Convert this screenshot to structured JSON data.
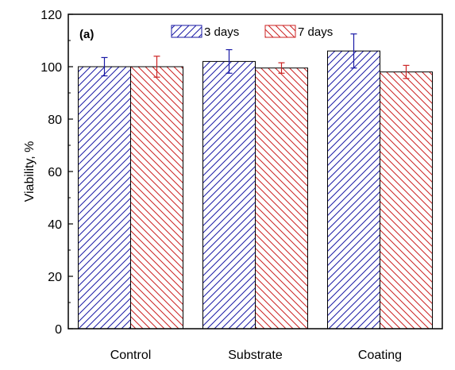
{
  "chart_data": {
    "type": "bar",
    "panel_label": "(a)",
    "title": "",
    "xlabel": "",
    "ylabel": "Viability, %",
    "ylim": [
      0,
      120
    ],
    "yticks": [
      0,
      20,
      40,
      60,
      80,
      100,
      120
    ],
    "categories": [
      "Control",
      "Substrate",
      "Coating"
    ],
    "series": [
      {
        "name": "3 days",
        "color": "#1a1aa6",
        "hatch": "diagonal-up",
        "values": [
          100,
          102,
          106
        ],
        "errors": [
          3.5,
          4.5,
          6.5
        ]
      },
      {
        "name": "7 days",
        "color": "#cc2222",
        "hatch": "diagonal-down",
        "values": [
          100,
          99.5,
          98
        ],
        "errors": [
          4,
          2,
          2.5
        ]
      }
    ],
    "legend_position": "top",
    "grid": false
  }
}
